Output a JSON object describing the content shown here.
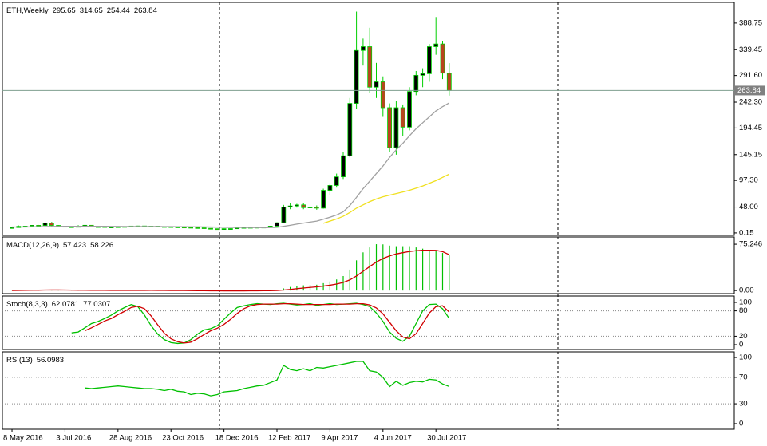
{
  "chart_data": [
    {
      "type": "candlestick",
      "title": "ETH,Weekly",
      "xlim": [
        -1.45,
        109.04
      ],
      "ylim": [
        -4.4,
        427
      ],
      "yticks": [
        388.75,
        339.45,
        {
          "value": 291.6,
          "label": "291.60"
        },
        {
          "value": 242.3,
          "label": "242.30"
        },
        194.45,
        145.15,
        {
          "value": 97.3,
          "label": "97.30"
        },
        {
          "value": 48,
          "label": "48.00"
        },
        0.15
      ],
      "up_color": "#000000",
      "down_color": "#b8441e",
      "wick_color": "#00d000",
      "price_line_color": "#7f9f8f",
      "open": [
        9.4,
        10.0,
        12.4,
        12.7,
        14.2,
        13.9,
        18.5,
        14.0,
        12.4,
        11.5,
        10.8,
        12.2,
        14.3,
        11.2,
        11.8,
        10.9,
        11.0,
        11.6,
        12.0,
        12.8,
        13.0,
        12.4,
        12.7,
        11.9,
        11.7,
        11.2,
        10.9,
        10.5,
        9.9,
        9.6,
        8.6,
        7.9,
        7.6,
        8.0,
        8.1,
        9.4,
        10.2,
        10.4,
        10.6,
        10.8,
        12.7,
        19.0,
        48,
        50,
        52,
        47,
        48,
        46,
        79,
        88,
        104,
        143,
        240,
        338,
        345,
        270,
        280,
        232,
        158,
        232,
        196,
        262,
        292,
        295,
        345,
        350,
        295.65
      ],
      "high": [
        10.6,
        13.9,
        13.2,
        14.6,
        14.9,
        21.5,
        20.5,
        14.8,
        12.8,
        12.0,
        14.5,
        14.9,
        14.5,
        12.3,
        12.0,
        11.4,
        12.1,
        12.3,
        13.2,
        13.4,
        13.1,
        12.9,
        12.8,
        12.0,
        11.8,
        11.3,
        11.1,
        10.7,
        10.0,
        9.7,
        8.8,
        8.2,
        8.3,
        8.4,
        10.1,
        10.9,
        10.7,
        10.9,
        11.2,
        13.0,
        19.8,
        52,
        56,
        54,
        55,
        50,
        51,
        82,
        92,
        110,
        150,
        250,
        410,
        360,
        380,
        315,
        290,
        240,
        245,
        238,
        270,
        300,
        305,
        350,
        400,
        355,
        314.65
      ],
      "low": [
        9.2,
        9.9,
        12.0,
        12.2,
        13.4,
        13.5,
        12.5,
        11.8,
        10.9,
        10.5,
        10.6,
        11.8,
        10.5,
        10.9,
        10.6,
        10.6,
        10.9,
        11.4,
        11.8,
        12.5,
        12.1,
        12.2,
        11.7,
        11.5,
        10.8,
        10.6,
        10.2,
        9.7,
        9.3,
        8.3,
        7.6,
        7.2,
        7.4,
        7.8,
        8.0,
        9.3,
        10.0,
        10.2,
        10.4,
        10.6,
        12.5,
        18.8,
        44,
        47,
        44,
        42,
        43,
        45,
        70,
        84,
        100,
        140,
        230,
        310,
        260,
        250,
        215,
        150,
        145,
        180,
        190,
        255,
        270,
        280,
        330,
        285,
        254.44
      ],
      "close": [
        10.0,
        12.4,
        12.7,
        14.2,
        13.9,
        18.5,
        14.0,
        12.4,
        11.5,
        10.8,
        12.2,
        14.3,
        11.2,
        11.8,
        10.9,
        11.0,
        11.6,
        12.0,
        12.8,
        13.0,
        12.4,
        12.7,
        11.9,
        11.7,
        11.2,
        10.9,
        10.5,
        9.9,
        9.6,
        8.6,
        7.9,
        7.6,
        8.0,
        8.1,
        9.4,
        10.2,
        10.4,
        10.6,
        10.8,
        12.7,
        19.0,
        48,
        50,
        52,
        47,
        48,
        46,
        79,
        88,
        104,
        143,
        240,
        338,
        345,
        270,
        280,
        232,
        158,
        232,
        196,
        262,
        292,
        295,
        345,
        350,
        296,
        263.84
      ],
      "lines": [
        {
          "color": "#a0a0a0",
          "values": [
            11.0,
            11.1,
            11.2,
            11.4,
            11.6,
            11.9,
            12.1,
            12.2,
            12.3,
            12.3,
            12.3,
            12.4,
            12.4,
            12.4,
            12.3,
            12.2,
            12.1,
            12.0,
            12.0,
            12.0,
            12.0,
            12.0,
            12.0,
            11.9,
            11.8,
            11.7,
            11.6,
            11.5,
            11.4,
            11.2,
            11.0,
            10.8,
            10.6,
            10.4,
            10.3,
            10.2,
            10.1,
            10.0,
            9.9,
            10.0,
            10.4,
            12.3,
            14.3,
            16.4,
            18.3,
            20.2,
            22.0,
            25.5,
            29.2,
            33.4,
            39.2,
            50.8,
            66,
            82,
            96,
            110,
            124,
            140,
            154,
            166,
            180,
            193,
            204,
            215,
            226,
            234,
            241
          ]
        },
        {
          "color": "#f0e020",
          "values": [
            null,
            null,
            null,
            null,
            null,
            null,
            null,
            null,
            null,
            null,
            null,
            null,
            null,
            null,
            null,
            null,
            null,
            null,
            null,
            null,
            null,
            null,
            null,
            null,
            null,
            null,
            null,
            null,
            null,
            null,
            null,
            null,
            null,
            null,
            null,
            null,
            null,
            null,
            null,
            null,
            null,
            null,
            null,
            null,
            null,
            null,
            null,
            18,
            22,
            26,
            31,
            38,
            46,
            52,
            58,
            63,
            67,
            70,
            73,
            76,
            79,
            83,
            87,
            92,
            97,
            103,
            109
          ]
        }
      ]
    },
    {
      "type": "macd",
      "title": "MACD(12,26,9)",
      "xlim": [
        -1.45,
        109.04
      ],
      "ylim": [
        -5,
        87
      ],
      "yticks": [
        75.246,
        {
          "value": 0,
          "label": "0.00"
        }
      ],
      "histogram_color": "#00c000",
      "signal_color": "#d00000",
      "histogram": [
        0.2,
        0.4,
        0.6,
        0.8,
        0.9,
        1.2,
        1.1,
        0.9,
        0.6,
        0.4,
        0.3,
        0.4,
        0.3,
        0.2,
        0.1,
        0.1,
        0.1,
        0.2,
        0.2,
        0.3,
        0.3,
        0.3,
        0.2,
        0.1,
        0.0,
        -0.1,
        -0.2,
        -0.3,
        -0.4,
        -0.6,
        -0.7,
        -0.8,
        -0.8,
        -0.7,
        -0.6,
        -0.4,
        -0.3,
        -0.2,
        -0.1,
        0.1,
        1.0,
        3.5,
        5.8,
        7.6,
        8.5,
        9.2,
        9.5,
        12.0,
        14.8,
        18.0,
        23.5,
        34.0,
        49.0,
        62.0,
        70.0,
        75.246,
        75.0,
        73.0,
        72.0,
        72.0,
        72.0,
        70.0,
        68.0,
        66.0,
        64.0,
        61.0,
        57.423
      ],
      "signal": [
        0.1,
        0.2,
        0.3,
        0.5,
        0.6,
        0.8,
        0.9,
        0.9,
        0.8,
        0.7,
        0.6,
        0.5,
        0.4,
        0.4,
        0.3,
        0.2,
        0.2,
        0.2,
        0.2,
        0.2,
        0.2,
        0.3,
        0.2,
        0.2,
        0.1,
        0.1,
        0.0,
        -0.1,
        -0.2,
        -0.3,
        -0.4,
        -0.5,
        -0.6,
        -0.6,
        -0.6,
        -0.6,
        -0.5,
        -0.4,
        -0.3,
        -0.2,
        0.1,
        0.8,
        1.8,
        3.0,
        4.1,
        5.1,
        6.0,
        7.2,
        8.7,
        10.5,
        13.1,
        17.3,
        23.6,
        31.3,
        39.0,
        46.3,
        52.0,
        56.2,
        59.4,
        61.5,
        63.4,
        64.7,
        65.4,
        65.5,
        65.2,
        63.2,
        58.226
      ]
    },
    {
      "type": "stochastic",
      "title": "Stoch(8,3,3)",
      "xlim": [
        -1.45,
        109.04
      ],
      "ylim": [
        -11.3,
        115.1
      ],
      "yticks": [
        100,
        80,
        20,
        0
      ],
      "levels": [
        80,
        20
      ],
      "k_color": "#00c000",
      "d_color": "#d00000",
      "k": [
        null,
        null,
        null,
        null,
        null,
        null,
        null,
        null,
        null,
        28,
        30,
        40,
        50,
        55,
        62,
        70,
        80,
        88,
        95,
        90,
        70,
        45,
        25,
        12,
        5,
        3,
        4,
        12,
        25,
        35,
        38,
        45,
        60,
        75,
        88,
        92,
        95,
        97,
        96,
        95,
        97,
        98,
        96,
        94,
        95,
        97,
        93,
        95,
        97,
        95,
        96,
        97,
        98,
        95,
        90,
        75,
        55,
        30,
        15,
        8,
        20,
        50,
        80,
        95,
        96,
        85,
        62.0781
      ],
      "d": [
        null,
        null,
        null,
        null,
        null,
        null,
        null,
        null,
        null,
        null,
        null,
        33,
        40,
        48,
        56,
        62,
        71,
        79,
        88,
        91,
        85,
        68,
        47,
        27,
        14,
        7,
        4,
        6,
        14,
        24,
        33,
        39,
        48,
        60,
        74,
        85,
        92,
        95,
        96,
        96,
        96,
        97,
        97,
        96,
        95,
        95,
        95,
        95,
        95,
        96,
        96,
        96,
        97,
        97,
        94,
        87,
        73,
        53,
        33,
        18,
        14,
        26,
        50,
        75,
        90,
        92,
        77.0307
      ]
    },
    {
      "type": "rsi",
      "title": "RSI(13)",
      "xlim": [
        -1.45,
        109.04
      ],
      "ylim": [
        -8.5,
        108.5
      ],
      "yticks": [
        100,
        70,
        30,
        0
      ],
      "levels": [
        70,
        30
      ],
      "color": "#00c000",
      "values": [
        null,
        null,
        null,
        null,
        null,
        null,
        null,
        null,
        null,
        null,
        null,
        54,
        53,
        54,
        55,
        56,
        57,
        56,
        55,
        54,
        53,
        53,
        52,
        50,
        52,
        49,
        48,
        44,
        46,
        45,
        42,
        44,
        48,
        49,
        50,
        53,
        55,
        57,
        58,
        62,
        66,
        88,
        82,
        80,
        83,
        80,
        85,
        84,
        86,
        88,
        90,
        92,
        94,
        94,
        80,
        78,
        70,
        56,
        64,
        58,
        62,
        64,
        63,
        67,
        66,
        60,
        56.0983
      ],
      "xticks": [
        {
          "value": 0,
          "label": "8 May 2016"
        },
        {
          "value": 8,
          "label": "3 Jul 2016"
        },
        {
          "value": 16,
          "label": "28 Aug 2016"
        },
        {
          "value": 24,
          "label": "23 Oct 2016"
        },
        {
          "value": 32,
          "label": "18 Dec 2016"
        },
        {
          "value": 40,
          "label": "12 Feb 2017"
        },
        {
          "value": 48,
          "label": "9 Apr 2017"
        },
        {
          "value": 56,
          "label": "4 Jun 2017"
        },
        {
          "value": 64,
          "label": "30 Jul 2017"
        }
      ]
    }
  ]
}
